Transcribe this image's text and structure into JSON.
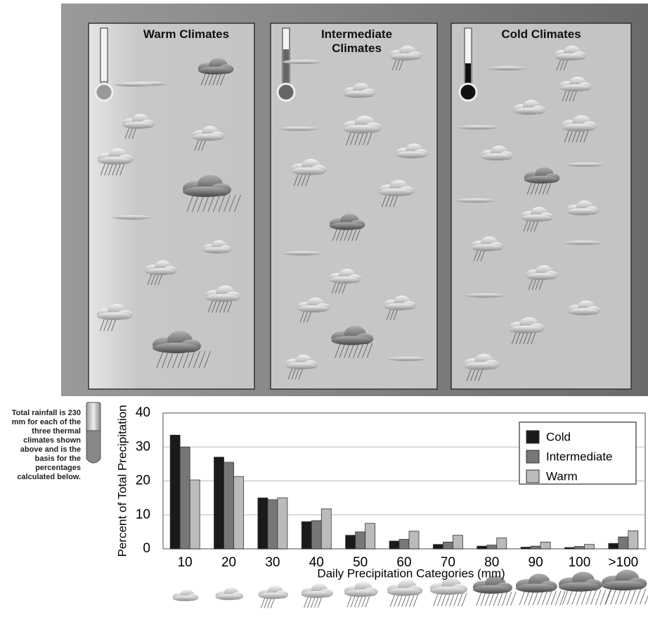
{
  "illustration": {
    "panels": [
      "Warm Climates",
      "Intermediate Climates",
      "Cold Climates"
    ],
    "note": "Total rainfall is 230 mm for each of the three thermal climates shown above and is the basis for the percentages calculated below."
  },
  "chart_data": {
    "type": "bar",
    "y_label": "Percent of Total Precipitation",
    "x_label": "Daily Precipitation Categories (mm)",
    "categories": [
      "10",
      "20",
      "30",
      "40",
      "50",
      "60",
      "70",
      "80",
      "90",
      "100",
      ">100"
    ],
    "series": [
      {
        "name": "Cold",
        "color": "#1a1a1a",
        "values": [
          33.5,
          27,
          15,
          8,
          4,
          2.3,
          1.3,
          0.8,
          0.5,
          0.4,
          1.6
        ]
      },
      {
        "name": "Intermediate",
        "color": "#777777",
        "values": [
          30,
          25.5,
          14.5,
          8.3,
          5,
          2.8,
          2,
          1.1,
          0.8,
          0.7,
          3.5
        ]
      },
      {
        "name": "Warm",
        "color": "#bbbbbb",
        "values": [
          20.3,
          21.3,
          15,
          11.8,
          7.5,
          5.2,
          4,
          3.2,
          2,
          1.3,
          5.3
        ]
      }
    ],
    "ylim": [
      0,
      40
    ],
    "yticks": [
      0,
      10,
      20,
      30,
      40
    ],
    "grid": true,
    "legend": "upper right"
  }
}
